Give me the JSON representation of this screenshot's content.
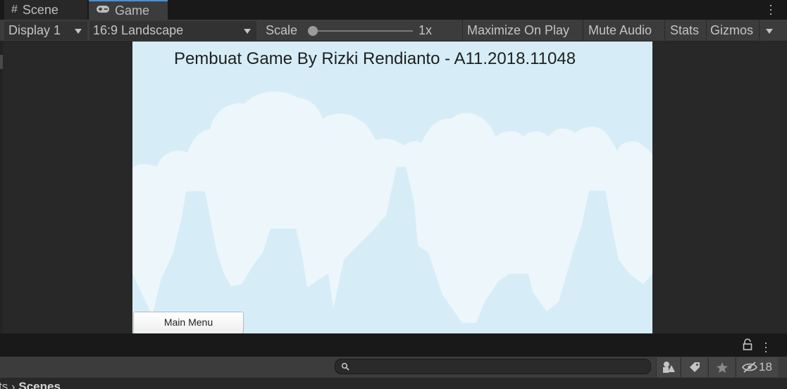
{
  "tabs": [
    {
      "label": "Scene",
      "icon": "hash-icon"
    },
    {
      "label": "Game",
      "icon": "gamepad-icon"
    }
  ],
  "toolbar": {
    "display": "Display 1",
    "aspect": "16:9 Landscape",
    "scale_label": "Scale",
    "scale_value": "1x",
    "scale_fraction": 0.0,
    "maximize": "Maximize On Play",
    "mute": "Mute Audio",
    "stats": "Stats",
    "gizmos": "Gizmos"
  },
  "game": {
    "title": "Pembuat Game By Rizki Rendianto - A11.2018.11048",
    "main_menu_button": "Main Menu",
    "sky_color": "#d6edf7",
    "cloud_color": "#ecf6fb"
  },
  "bottom_panel": {
    "search_placeholder": "",
    "hidden_count": "18",
    "breadcrumb_prefix": "ts",
    "breadcrumb_current": "Scenes"
  },
  "colors": {
    "accent": "#4a8fd6",
    "panel": "#3c3c3c",
    "dark": "#191919"
  }
}
